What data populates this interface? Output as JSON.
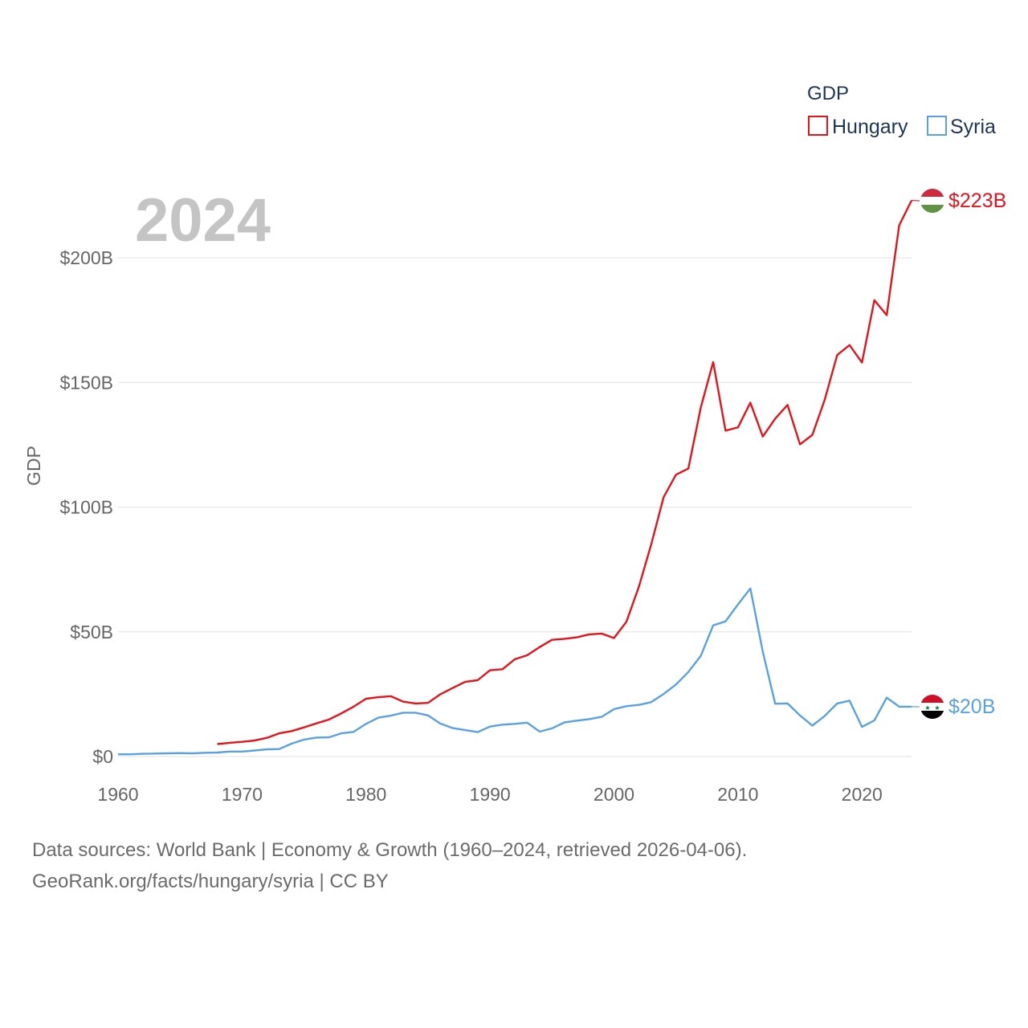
{
  "footer": {
    "line1": "Data sources: World Bank | Economy & Growth (1960–2024, retrieved 2026-04-06).",
    "line2": "GeoRank.org/facts/hungary/syria | CC BY"
  },
  "chart_data": {
    "type": "line",
    "title": "",
    "year_label": "2024",
    "xlabel": "",
    "ylabel": "GDP",
    "xlim": [
      1960,
      2024
    ],
    "ylim": [
      0,
      230
    ],
    "x_ticks": [
      1960,
      1970,
      1980,
      1990,
      2000,
      2010,
      2020
    ],
    "y_ticks": [
      {
        "value": 0,
        "label": "$0"
      },
      {
        "value": 50,
        "label": "$50B"
      },
      {
        "value": 100,
        "label": "$100B"
      },
      {
        "value": 150,
        "label": "$150B"
      },
      {
        "value": 200,
        "label": "$200B"
      }
    ],
    "legend_title": "GDP",
    "legend_position": "top-right",
    "series": [
      {
        "name": "Hungary",
        "color": "#e3141b",
        "end_label": "$223B",
        "flag": "hungary-flag",
        "x": [
          1968,
          1969,
          1970,
          1971,
          1972,
          1973,
          1974,
          1975,
          1976,
          1977,
          1978,
          1979,
          1980,
          1981,
          1982,
          1983,
          1984,
          1985,
          1986,
          1987,
          1988,
          1989,
          1990,
          1991,
          1992,
          1993,
          1994,
          1995,
          1996,
          1997,
          1998,
          1999,
          2000,
          2001,
          2002,
          2003,
          2004,
          2005,
          2006,
          2007,
          2008,
          2009,
          2010,
          2011,
          2012,
          2013,
          2014,
          2015,
          2016,
          2017,
          2018,
          2019,
          2020,
          2021,
          2022,
          2023,
          2024
        ],
        "values": [
          5.0,
          5.5,
          5.9,
          6.4,
          7.5,
          9.3,
          10.2,
          11.7,
          13.3,
          14.8,
          17.3,
          20.0,
          23.2,
          23.8,
          24.2,
          22.0,
          21.3,
          21.5,
          25.0,
          27.5,
          30.0,
          30.6,
          34.6,
          35.0,
          39.0,
          40.6,
          43.9,
          46.8,
          47.2,
          47.8,
          49.0,
          49.3,
          47.5,
          54.0,
          68.0,
          85.0,
          104.0,
          113.0,
          115.5,
          140.0,
          158.2,
          130.7,
          132.0,
          141.9,
          128.3,
          135.5,
          141.0,
          125.2,
          129.0,
          143.1,
          161.0,
          165.0,
          158.0,
          183.0,
          177.0,
          213.0,
          223.0
        ]
      },
      {
        "name": "Syria",
        "color": "#5aa1e3",
        "end_label": "$20B",
        "flag": "syria-flag",
        "x": [
          1960,
          1961,
          1962,
          1963,
          1964,
          1965,
          1966,
          1967,
          1968,
          1969,
          1970,
          1971,
          1972,
          1973,
          1974,
          1975,
          1976,
          1977,
          1978,
          1979,
          1980,
          1981,
          1982,
          1983,
          1984,
          1985,
          1986,
          1987,
          1988,
          1989,
          1990,
          1991,
          1992,
          1993,
          1994,
          1995,
          1996,
          1997,
          1998,
          1999,
          2000,
          2001,
          2002,
          2003,
          2004,
          2005,
          2006,
          2007,
          2008,
          2009,
          2010,
          2011,
          2012,
          2013,
          2014,
          2015,
          2016,
          2017,
          2018,
          2019,
          2020,
          2021,
          2022,
          2023,
          2024
        ],
        "values": [
          0.9,
          0.9,
          1.1,
          1.2,
          1.3,
          1.4,
          1.3,
          1.5,
          1.6,
          2.0,
          2.0,
          2.4,
          2.9,
          3.0,
          5.2,
          6.8,
          7.6,
          7.7,
          9.3,
          9.9,
          13.1,
          15.6,
          16.4,
          17.6,
          17.6,
          16.5,
          13.2,
          11.4,
          10.6,
          9.8,
          12.0,
          12.8,
          13.1,
          13.6,
          10.0,
          11.3,
          13.7,
          14.4,
          15.0,
          15.9,
          19.0,
          20.2,
          20.7,
          21.8,
          25.1,
          28.9,
          33.9,
          40.4,
          52.6,
          54.2,
          61.0,
          67.4,
          42.0,
          21.2,
          21.3,
          16.5,
          12.4,
          16.3,
          21.3,
          22.4,
          11.9,
          14.5,
          23.6,
          20.0,
          20.0
        ]
      }
    ]
  }
}
